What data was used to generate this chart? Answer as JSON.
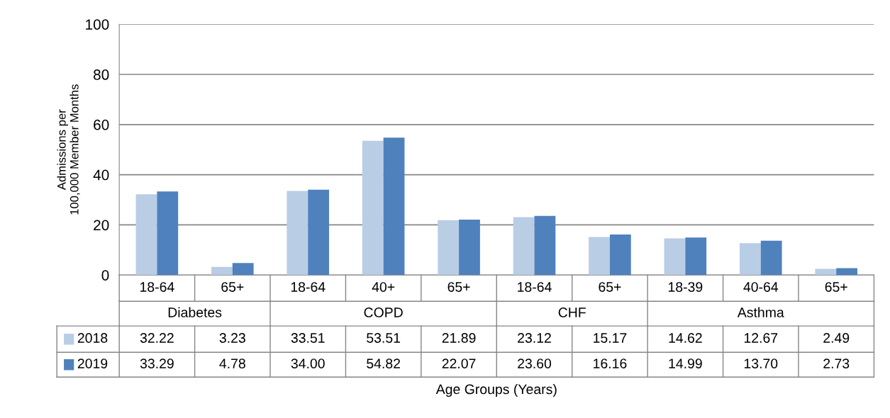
{
  "chart_data": {
    "type": "bar",
    "ylabel": "Admissions per\n100,000 Member Months",
    "categories": [
      "18-64",
      "65+",
      "18-64",
      "40+",
      "65+",
      "18-64",
      "65+",
      "18-39",
      "40-64",
      "65+"
    ],
    "annotations": [
      "Diabetes",
      "COPD",
      "CHF",
      "Asthma",
      "Age Groups (Years)"
    ],
    "series": [
      {
        "name": "2018",
        "color": "#b9cde5",
        "values": [
          32.22,
          3.23,
          33.51,
          53.51,
          21.89,
          23.12,
          15.17,
          14.62,
          12.67,
          2.49
        ],
        "value_labels": [
          "32.22",
          "3.23",
          "33.51",
          "53.51",
          "21.89",
          "23.12",
          "15.17",
          "14.62",
          "12.67",
          "2.49"
        ]
      },
      {
        "name": "2019",
        "color": "#4f81bd",
        "values": [
          33.29,
          4.78,
          34.0,
          54.82,
          22.07,
          23.6,
          16.16,
          14.99,
          13.7,
          2.73
        ],
        "value_labels": [
          "33.29",
          "4.78",
          "34.00",
          "54.82",
          "22.07",
          "23.60",
          "16.16",
          "14.99",
          "13.70",
          "2.73"
        ]
      }
    ],
    "ylim": [
      0,
      100
    ],
    "yticks": [
      0,
      20,
      40,
      60,
      80,
      100
    ],
    "grid": "y",
    "legend": "bottom"
  }
}
